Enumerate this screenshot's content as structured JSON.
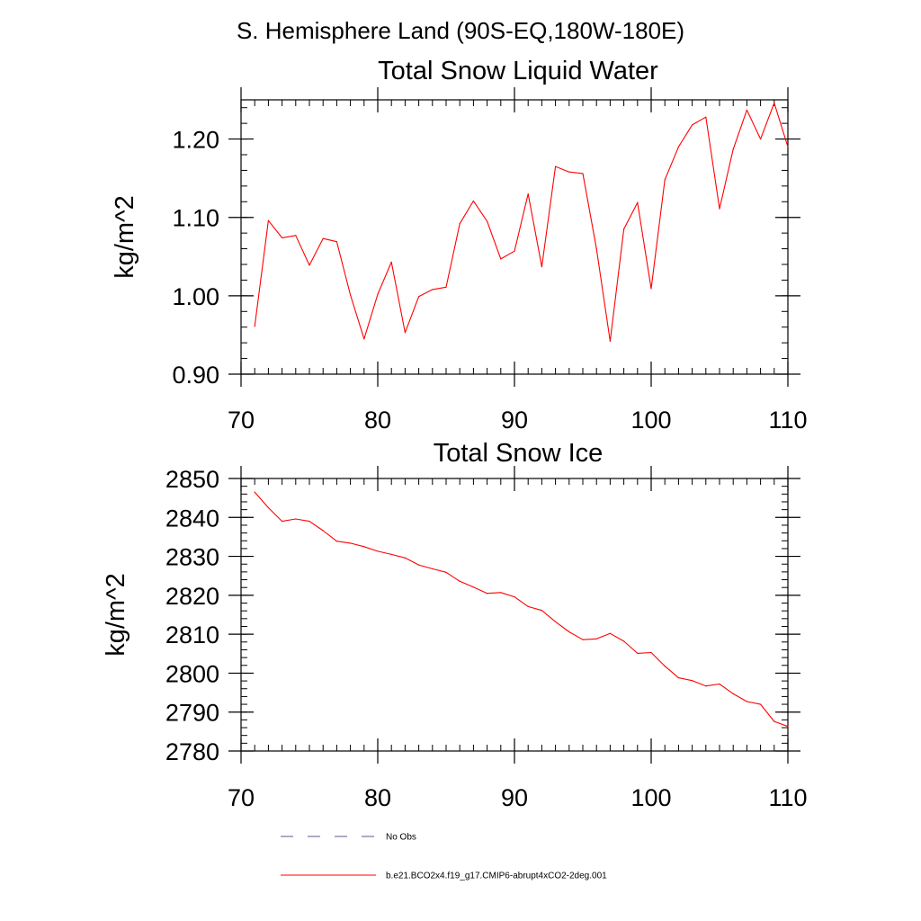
{
  "figure": {
    "region_title": "S. Hemisphere Land (90S-EQ,180W-180E)"
  },
  "chart_data": [
    {
      "type": "line",
      "title": "Total Snow Liquid Water",
      "xlabel": "",
      "ylabel": "kg/m^2",
      "xlim": [
        70,
        110
      ],
      "ylim": [
        0.9,
        1.25
      ],
      "xticks": [
        70,
        80,
        90,
        100,
        110
      ],
      "xtick_labels": [
        "70",
        "80",
        "90",
        "100",
        "110"
      ],
      "yticks": [
        0.9,
        1.0,
        1.1,
        1.2
      ],
      "ytick_labels": [
        "0.90",
        "1.00",
        "1.10",
        "1.20"
      ],
      "y_minor_step": 0.02,
      "x_minor_step": 1,
      "series": [
        {
          "name": "b.e21.BCO2x4.f19_g17.CMIP6-abrupt4xCO2-2deg.001",
          "color": "#ff0000",
          "x": [
            71,
            72,
            73,
            74,
            75,
            76,
            77,
            78,
            79,
            80,
            81,
            82,
            83,
            84,
            85,
            86,
            87,
            88,
            89,
            90,
            91,
            92,
            93,
            94,
            95,
            96,
            97,
            98,
            99,
            100,
            101,
            102,
            103,
            104,
            105,
            106,
            107,
            108,
            109,
            110
          ],
          "values": [
            0.961,
            1.096,
            1.074,
            1.077,
            1.039,
            1.073,
            1.069,
            1.001,
            0.945,
            1.002,
            1.043,
            0.953,
            0.999,
            1.008,
            1.011,
            1.092,
            1.121,
            1.095,
            1.047,
            1.057,
            1.13,
            1.037,
            1.165,
            1.158,
            1.156,
            1.06,
            0.942,
            1.085,
            1.119,
            1.009,
            1.148,
            1.19,
            1.218,
            1.228,
            1.111,
            1.187,
            1.237,
            1.2,
            1.246,
            1.19
          ]
        }
      ]
    },
    {
      "type": "line",
      "title": "Total Snow Ice",
      "xlabel": "",
      "ylabel": "kg/m^2",
      "xlim": [
        70,
        110
      ],
      "ylim": [
        2780,
        2850
      ],
      "xticks": [
        70,
        80,
        90,
        100,
        110
      ],
      "xtick_labels": [
        "70",
        "80",
        "90",
        "100",
        "110"
      ],
      "yticks": [
        2780,
        2790,
        2800,
        2810,
        2820,
        2830,
        2840,
        2850
      ],
      "ytick_labels": [
        "2780",
        "2790",
        "2800",
        "2810",
        "2820",
        "2830",
        "2840",
        "2850"
      ],
      "y_minor_step": 2,
      "x_minor_step": 1,
      "series": [
        {
          "name": "b.e21.BCO2x4.f19_g17.CMIP6-abrupt4xCO2-2deg.001",
          "color": "#ff0000",
          "x": [
            71,
            72,
            73,
            74,
            75,
            76,
            77,
            78,
            79,
            80,
            81,
            82,
            83,
            84,
            85,
            86,
            87,
            88,
            89,
            90,
            91,
            92,
            93,
            94,
            95,
            96,
            97,
            98,
            99,
            100,
            101,
            102,
            103,
            104,
            105,
            106,
            107,
            108,
            109,
            110
          ],
          "values": [
            2846.5,
            2842.5,
            2839.0,
            2839.6,
            2839.0,
            2836.6,
            2833.9,
            2833.4,
            2832.5,
            2831.3,
            2830.5,
            2829.6,
            2827.8,
            2826.8,
            2825.9,
            2823.6,
            2822.1,
            2820.5,
            2820.7,
            2819.6,
            2817.1,
            2816.1,
            2813.2,
            2810.6,
            2808.6,
            2808.8,
            2810.2,
            2808.2,
            2805.1,
            2805.3,
            2801.8,
            2798.8,
            2798.1,
            2796.7,
            2797.2,
            2794.7,
            2792.7,
            2792.0,
            2787.6,
            2786.3
          ]
        }
      ]
    }
  ],
  "legend": {
    "items": [
      {
        "label": "No Obs",
        "color": "#5a5a8c",
        "dash": "dashed"
      },
      {
        "label": "b.e21.BCO2x4.f19_g17.CMIP6-abrupt4xCO2-2deg.001",
        "color": "#ff0000",
        "dash": "solid"
      }
    ]
  }
}
